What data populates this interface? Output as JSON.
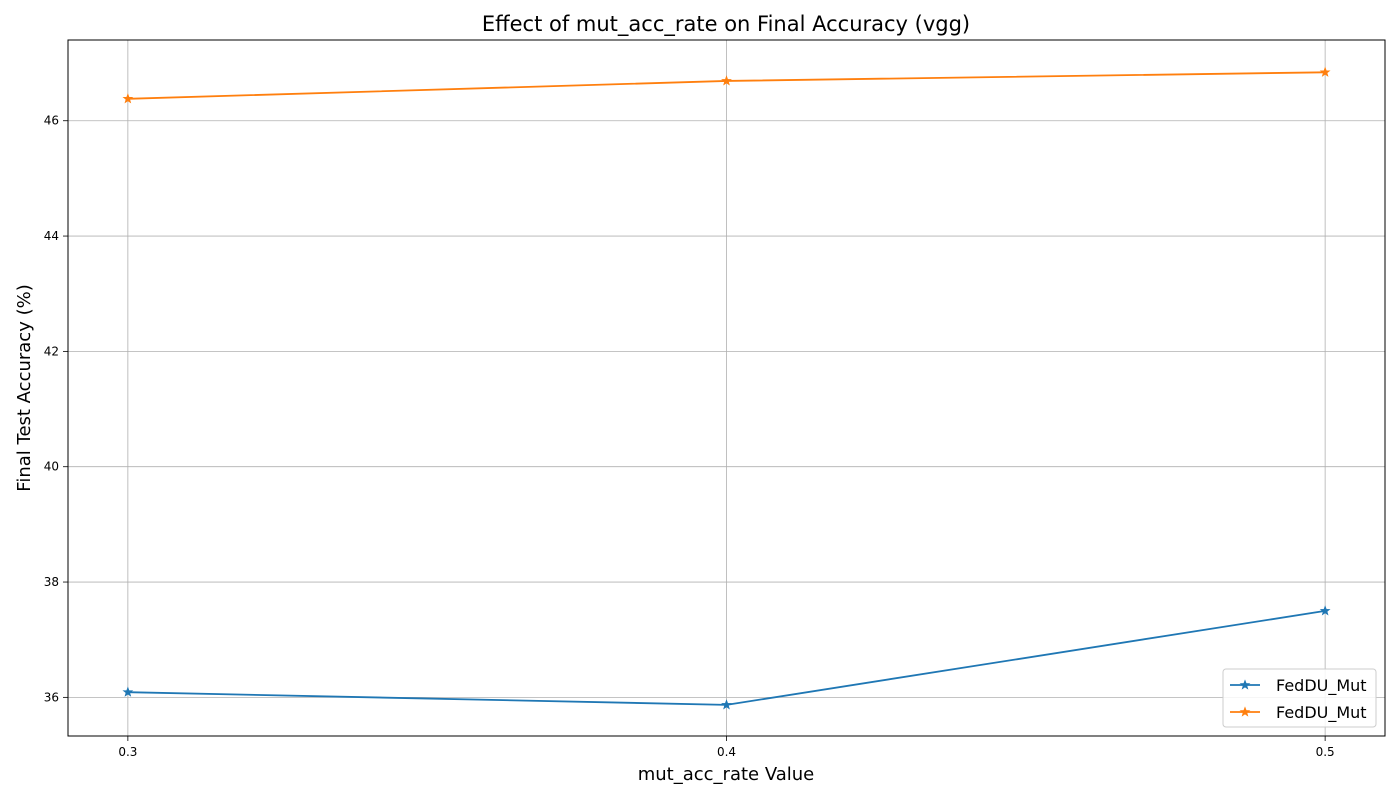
{
  "chart_data": {
    "type": "line",
    "title": "Effect of mut_acc_rate on Final Accuracy (vgg)",
    "xlabel": "mut_acc_rate Value",
    "ylabel": "Final Test Accuracy (%)",
    "x": [
      0.3,
      0.4,
      0.5
    ],
    "x_tick_labels": [
      "0.3",
      "0.4",
      "0.5"
    ],
    "xlim": [
      0.29,
      0.51
    ],
    "y_ticks": [
      36,
      38,
      40,
      42,
      44,
      46
    ],
    "ylim": [
      35.33,
      47.4
    ],
    "grid": true,
    "legend_position": "lower right",
    "marker": "star",
    "series": [
      {
        "name": "FedDU_Mut",
        "values": [
          36.09,
          35.87,
          37.5
        ],
        "color": "#1f77b4"
      },
      {
        "name": "FedDU_Mut",
        "values": [
          46.38,
          46.69,
          46.84
        ],
        "color": "#ff7f0e"
      }
    ]
  }
}
